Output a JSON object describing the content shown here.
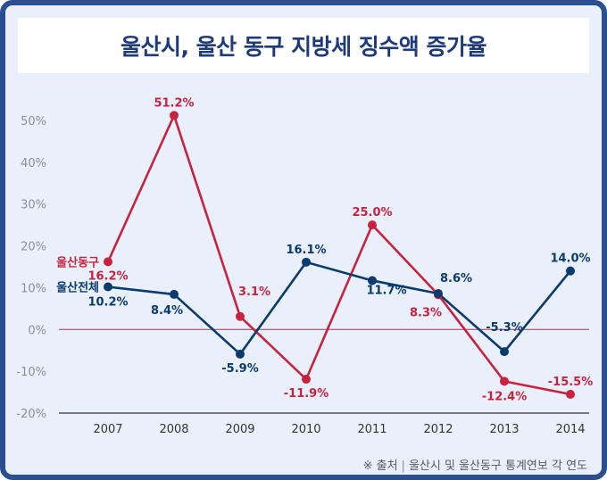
{
  "title": "울산시, 울산 동구 지방세 징수액 증가율",
  "source": {
    "prefix": "※ 출처",
    "text": "울산시 및 울산동구 통계연보 각 연도"
  },
  "colors": {
    "ulsan_total": "#0b3a6e",
    "dong_gu": "#c8223e",
    "zero_line": "#a0384e",
    "axis": "#333333"
  },
  "chart_data": {
    "type": "line",
    "categories": [
      "2007",
      "2008",
      "2009",
      "2010",
      "2011",
      "2012",
      "2013",
      "2014"
    ],
    "ylim": [
      -20,
      50
    ],
    "yticks": [
      50,
      40,
      30,
      20,
      10,
      0,
      -10,
      -20
    ],
    "ytick_labels": [
      "50%",
      "40%",
      "30%",
      "20%",
      "10%",
      "0%",
      "-10%",
      "-20%"
    ],
    "series": [
      {
        "name": "울산동구",
        "values": [
          16.2,
          51.2,
          3.1,
          -11.9,
          25.0,
          8.3,
          -12.4,
          -15.5
        ],
        "labels": [
          "16.2%",
          "51.2%",
          "3.1%",
          "-11.9%",
          "25.0%",
          "8.3%",
          "-12.4%",
          "-15.5%"
        ]
      },
      {
        "name": "울산전체",
        "values": [
          10.2,
          8.4,
          -5.9,
          16.1,
          11.7,
          8.6,
          -5.3,
          14.0
        ],
        "labels": [
          "10.2%",
          "8.4%",
          "-5.9%",
          "16.1%",
          "11.7%",
          "8.6%",
          "-5.3%",
          "14.0%"
        ]
      }
    ]
  }
}
